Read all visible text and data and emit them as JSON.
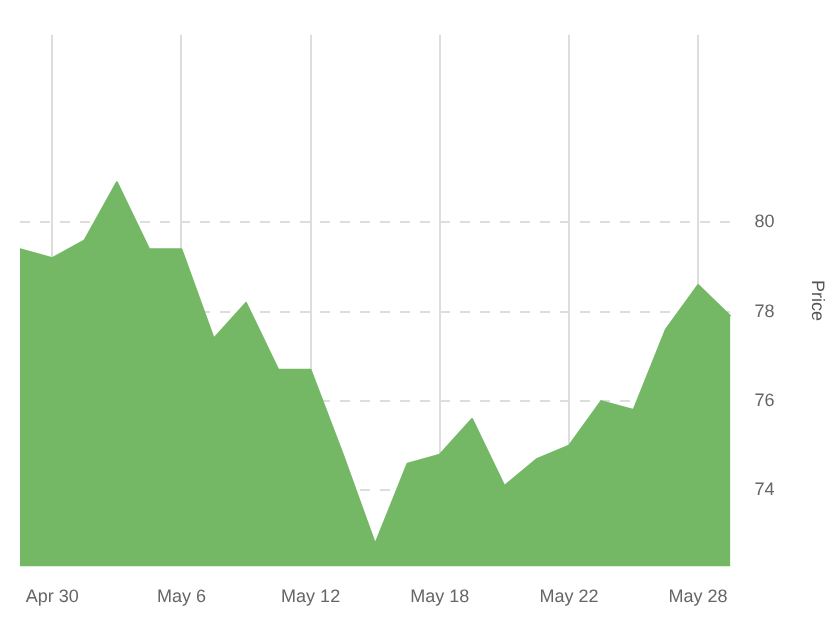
{
  "chart_data": {
    "type": "area",
    "ylabel": "Price",
    "categories": [
      null,
      "Apr 30",
      null,
      null,
      null,
      "May 6",
      null,
      null,
      null,
      "May 12",
      null,
      null,
      null,
      "May 18",
      null,
      null,
      null,
      "May 22",
      null,
      null,
      null,
      "May 28",
      null
    ],
    "series": [
      {
        "color": "#74b866",
        "values": [
          79.4,
          79.2,
          79.6,
          80.9,
          79.4,
          79.4,
          77.4,
          78.2,
          76.7,
          76.7,
          74.8,
          72.8,
          74.6,
          74.8,
          75.6,
          74.1,
          74.7,
          75.0,
          76.0,
          75.8,
          77.6,
          78.6,
          77.9
        ]
      }
    ],
    "ylim": [
      72.3,
      84.2
    ],
    "yticks": [
      74,
      76,
      78,
      80
    ],
    "grid": true,
    "legend": false,
    "marker": "none"
  }
}
